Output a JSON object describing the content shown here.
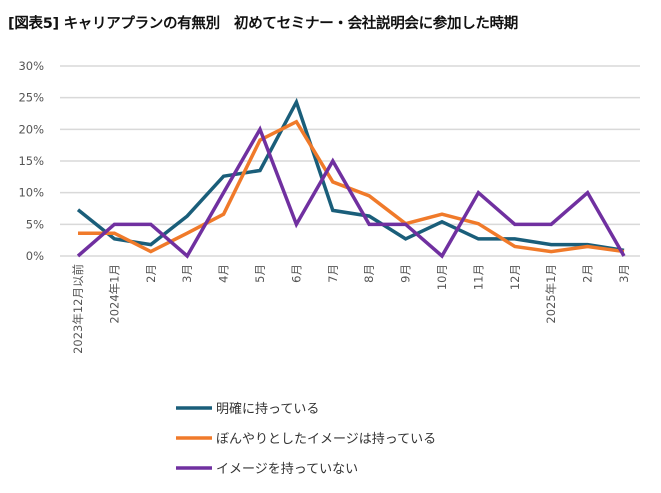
{
  "chart_data": {
    "type": "line",
    "title": "[図表5]  キャリアプランの有無別　初めてセミナー・会社説明会に参加した時期",
    "categories": [
      "2023年12月以前",
      "2024年1月",
      "2月",
      "3月",
      "4月",
      "5月",
      "6月",
      "7月",
      "8月",
      "9月",
      "10月",
      "11月",
      "12月",
      "2025年1月",
      "2月",
      "3月"
    ],
    "ylim": [
      0,
      30
    ],
    "yticks": [
      "0%",
      "5%",
      "10%",
      "15%",
      "20%",
      "25%",
      "30%"
    ],
    "grid": true,
    "legend_position": "bottom",
    "series": [
      {
        "name": "明確に持っている",
        "color": "#1a5e7a",
        "values": [
          7.3,
          2.7,
          1.8,
          6.3,
          12.6,
          13.5,
          24.3,
          7.2,
          6.3,
          2.7,
          5.4,
          2.7,
          2.7,
          1.8,
          1.8,
          0.9
        ]
      },
      {
        "name": "ぼんやりとしたイメージは持っている",
        "color": "#f07a2a",
        "values": [
          3.6,
          3.6,
          0.7,
          3.6,
          6.6,
          18.3,
          21.2,
          11.7,
          9.5,
          5.1,
          6.6,
          5.1,
          1.5,
          0.7,
          1.5,
          0.7
        ]
      },
      {
        "name": "イメージを持っていない",
        "color": "#7030a0",
        "values": [
          0,
          5,
          5,
          0,
          10,
          20,
          5,
          15,
          5,
          5,
          0,
          10,
          5,
          5,
          10,
          0
        ]
      }
    ]
  }
}
